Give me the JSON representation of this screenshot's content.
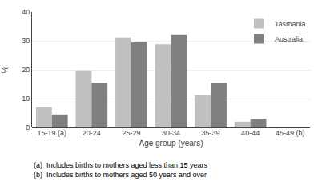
{
  "chart_data": {
    "type": "bar",
    "categories": [
      "15-19 (a)",
      "20-24",
      "25-29",
      "30-34",
      "35-39",
      "40-44",
      "45-49 (b)"
    ],
    "series": [
      {
        "name": "Tasmania",
        "color": "#c0c0c0",
        "values": [
          7.0,
          19.8,
          31.2,
          28.8,
          11.2,
          2.0,
          0.0
        ]
      },
      {
        "name": "Australia",
        "color": "#808080",
        "values": [
          4.5,
          15.5,
          29.5,
          32.0,
          15.5,
          3.0,
          0.0
        ]
      }
    ],
    "xlabel": "Age group (years)",
    "ylabel": "%",
    "ylim": [
      0,
      40
    ],
    "yticks": [
      0,
      10,
      20,
      30,
      40
    ],
    "grid": true,
    "legend": "upper right",
    "annotations": [
      "(a)  Includes births to mothers aged less than 15 years",
      "(b)  Includes births to mothers aged 50 years and over"
    ]
  }
}
